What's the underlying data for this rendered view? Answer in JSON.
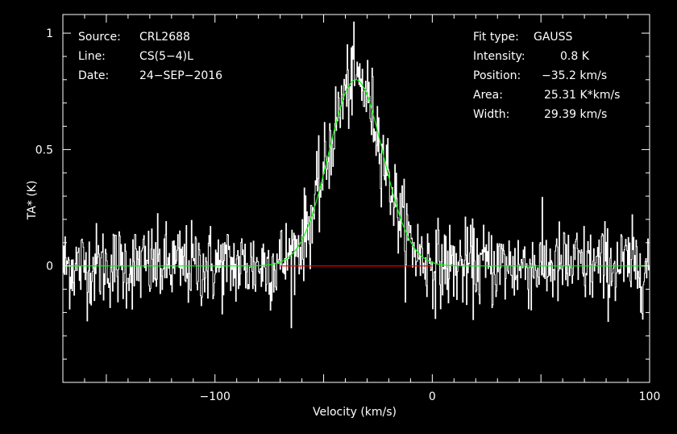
{
  "header": {
    "source_label": "Source:",
    "source_value": "CRL2688",
    "line_label": "Line:",
    "line_value": "CS(5−4)L",
    "date_label": "Date:",
    "date_value": "24−SEP−2016"
  },
  "fit": {
    "type_label": "Fit type:",
    "type_value": "GAUSS",
    "intensity_label": "Intensity:",
    "intensity_value": "0.8 K",
    "position_label": "Position:",
    "position_value": "−35.2 km/s",
    "area_label": "Area:",
    "area_value": "25.31 K*km/s",
    "width_label": "Width:",
    "width_value": "29.39 km/s"
  },
  "chart_data": {
    "type": "line",
    "xlabel": "Velocity (km/s)",
    "ylabel": "TA* (K)",
    "xlim": [
      -170,
      100
    ],
    "ylim": [
      -0.5,
      1.08
    ],
    "x_ticks": [
      {
        "value": -100,
        "label": "−100"
      },
      {
        "value": 0,
        "label": "0"
      },
      {
        "value": 100,
        "label": "100"
      }
    ],
    "y_ticks": [
      {
        "value": 0,
        "label": "0"
      },
      {
        "value": 0.5,
        "label": "0.5"
      },
      {
        "value": 1,
        "label": "1"
      }
    ],
    "series": [
      {
        "kind": "spectrum",
        "x_start": -170,
        "x_end": 100,
        "n_channels": 900,
        "noise_rms": 0.09,
        "color": "#ffffff"
      },
      {
        "kind": "gaussian_fit",
        "amplitude": 0.8,
        "center": -35.2,
        "fwhm": 29.39,
        "color": "#00ff00"
      },
      {
        "kind": "baseline",
        "x_start": -70,
        "x_end": 0,
        "y": 0,
        "color": "#ff0000"
      }
    ],
    "grid": false
  }
}
